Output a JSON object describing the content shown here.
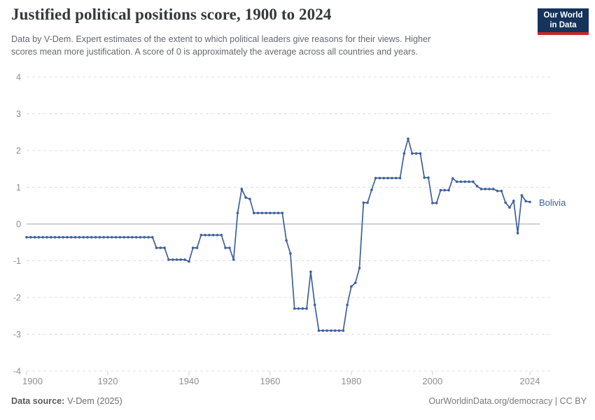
{
  "header": {
    "title": "Justified political positions score, 1900 to 2024",
    "subtitle_line1": "Data by V-Dem. Expert estimates of the extent to which political leaders give reasons for their views. Higher",
    "subtitle_line2": "scores mean more justification. A score of 0 is approximately the average across all countries and years.",
    "logo_line1": "Our World",
    "logo_line2": "in Data",
    "logo_bg_color": "#15335b",
    "logo_bar_color": "#ce261f"
  },
  "footer": {
    "source_label": "Data source:",
    "source_value": "V-Dem (2025)",
    "credit": "OurWorldinData.org/democracy | CC BY"
  },
  "chart_data": {
    "type": "line",
    "title": "Justified political positions score, 1900 to 2024",
    "xlabel": "",
    "ylabel": "",
    "xlim": [
      1900,
      2024
    ],
    "ylim": [
      -4,
      4
    ],
    "yticks": [
      4,
      3,
      2,
      1,
      0,
      -1,
      -2,
      -3,
      -4
    ],
    "xticks": [
      1900,
      1920,
      1940,
      1960,
      1980,
      2000,
      2024
    ],
    "grid": "horizontal-dashed",
    "zero_line": true,
    "legend_position": "end-of-line-label",
    "series": [
      {
        "name": "Bolivia",
        "color": "#3d5f9f",
        "points": [
          [
            1900,
            -0.36
          ],
          [
            1901,
            -0.36
          ],
          [
            1902,
            -0.36
          ],
          [
            1903,
            -0.36
          ],
          [
            1904,
            -0.36
          ],
          [
            1905,
            -0.36
          ],
          [
            1906,
            -0.36
          ],
          [
            1907,
            -0.36
          ],
          [
            1908,
            -0.36
          ],
          [
            1909,
            -0.36
          ],
          [
            1910,
            -0.36
          ],
          [
            1911,
            -0.36
          ],
          [
            1912,
            -0.36
          ],
          [
            1913,
            -0.36
          ],
          [
            1914,
            -0.36
          ],
          [
            1915,
            -0.36
          ],
          [
            1916,
            -0.36
          ],
          [
            1917,
            -0.36
          ],
          [
            1918,
            -0.36
          ],
          [
            1919,
            -0.36
          ],
          [
            1920,
            -0.36
          ],
          [
            1921,
            -0.36
          ],
          [
            1922,
            -0.36
          ],
          [
            1923,
            -0.36
          ],
          [
            1924,
            -0.36
          ],
          [
            1925,
            -0.36
          ],
          [
            1926,
            -0.36
          ],
          [
            1927,
            -0.36
          ],
          [
            1928,
            -0.36
          ],
          [
            1929,
            -0.36
          ],
          [
            1930,
            -0.36
          ],
          [
            1931,
            -0.36
          ],
          [
            1932,
            -0.65
          ],
          [
            1933,
            -0.65
          ],
          [
            1934,
            -0.65
          ],
          [
            1935,
            -0.97
          ],
          [
            1936,
            -0.97
          ],
          [
            1937,
            -0.97
          ],
          [
            1938,
            -0.97
          ],
          [
            1939,
            -0.97
          ],
          [
            1940,
            -1.02
          ],
          [
            1941,
            -0.65
          ],
          [
            1942,
            -0.65
          ],
          [
            1943,
            -0.3
          ],
          [
            1944,
            -0.3
          ],
          [
            1945,
            -0.3
          ],
          [
            1946,
            -0.3
          ],
          [
            1947,
            -0.3
          ],
          [
            1948,
            -0.3
          ],
          [
            1949,
            -0.65
          ],
          [
            1950,
            -0.65
          ],
          [
            1951,
            -0.97
          ],
          [
            1952,
            0.3
          ],
          [
            1953,
            0.95
          ],
          [
            1954,
            0.72
          ],
          [
            1955,
            0.68
          ],
          [
            1956,
            0.3
          ],
          [
            1957,
            0.3
          ],
          [
            1958,
            0.3
          ],
          [
            1959,
            0.3
          ],
          [
            1960,
            0.3
          ],
          [
            1961,
            0.3
          ],
          [
            1962,
            0.3
          ],
          [
            1963,
            0.3
          ],
          [
            1964,
            -0.45
          ],
          [
            1965,
            -0.8
          ],
          [
            1966,
            -2.3
          ],
          [
            1967,
            -2.3
          ],
          [
            1968,
            -2.3
          ],
          [
            1969,
            -2.3
          ],
          [
            1970,
            -1.3
          ],
          [
            1971,
            -2.2
          ],
          [
            1972,
            -2.9
          ],
          [
            1973,
            -2.9
          ],
          [
            1974,
            -2.9
          ],
          [
            1975,
            -2.9
          ],
          [
            1976,
            -2.9
          ],
          [
            1977,
            -2.9
          ],
          [
            1978,
            -2.9
          ],
          [
            1979,
            -2.2
          ],
          [
            1980,
            -1.7
          ],
          [
            1981,
            -1.6
          ],
          [
            1982,
            -1.2
          ],
          [
            1983,
            0.58
          ],
          [
            1984,
            0.58
          ],
          [
            1985,
            0.93
          ],
          [
            1986,
            1.25
          ],
          [
            1987,
            1.25
          ],
          [
            1988,
            1.25
          ],
          [
            1989,
            1.25
          ],
          [
            1990,
            1.25
          ],
          [
            1991,
            1.25
          ],
          [
            1992,
            1.25
          ],
          [
            1993,
            1.92
          ],
          [
            1994,
            2.32
          ],
          [
            1995,
            1.92
          ],
          [
            1996,
            1.92
          ],
          [
            1997,
            1.92
          ],
          [
            1998,
            1.26
          ],
          [
            1999,
            1.26
          ],
          [
            2000,
            0.57
          ],
          [
            2001,
            0.57
          ],
          [
            2002,
            0.92
          ],
          [
            2003,
            0.92
          ],
          [
            2004,
            0.92
          ],
          [
            2005,
            1.24
          ],
          [
            2006,
            1.15
          ],
          [
            2007,
            1.15
          ],
          [
            2008,
            1.15
          ],
          [
            2009,
            1.15
          ],
          [
            2010,
            1.15
          ],
          [
            2011,
            1.03
          ],
          [
            2012,
            0.95
          ],
          [
            2013,
            0.95
          ],
          [
            2014,
            0.95
          ],
          [
            2015,
            0.95
          ],
          [
            2016,
            0.9
          ],
          [
            2017,
            0.9
          ],
          [
            2018,
            0.58
          ],
          [
            2019,
            0.45
          ],
          [
            2020,
            0.63
          ],
          [
            2021,
            -0.25
          ],
          [
            2022,
            0.78
          ],
          [
            2023,
            0.62
          ],
          [
            2024,
            0.6
          ]
        ]
      }
    ]
  }
}
